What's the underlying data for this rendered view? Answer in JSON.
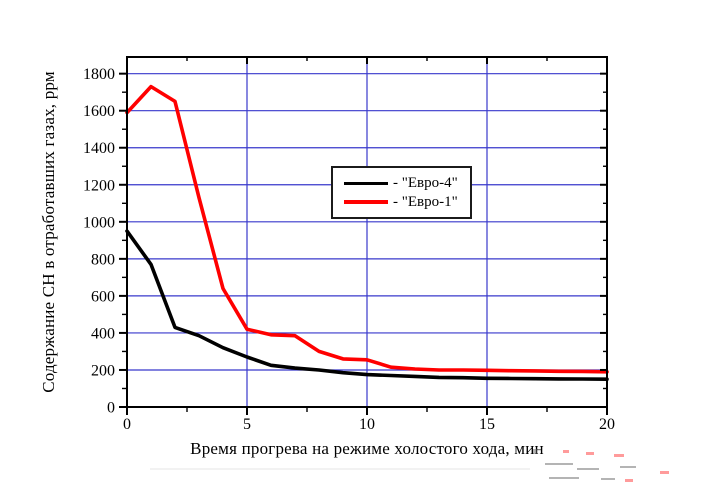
{
  "chart_data": {
    "type": "line",
    "title": "",
    "xlabel": "Время прогрева на режиме холостого хода, мин",
    "ylabel": "Содержание СН в отработавших газах, ррм",
    "xlim": [
      0,
      20
    ],
    "ylim": [
      0,
      1890
    ],
    "x": [
      0,
      1,
      2,
      3,
      4,
      5,
      6,
      7,
      8,
      9,
      10,
      11,
      12,
      13,
      14,
      15,
      16,
      17,
      18,
      19,
      20
    ],
    "series": [
      {
        "name": "Евро-4",
        "color": "#000000",
        "values": [
          950,
          770,
          430,
          385,
          320,
          270,
          225,
          210,
          200,
          185,
          175,
          170,
          165,
          160,
          158,
          155,
          154,
          153,
          152,
          151,
          150
        ]
      },
      {
        "name": "Евро-1",
        "color": "#ff0000",
        "values": [
          1590,
          1730,
          1650,
          1130,
          640,
          420,
          390,
          385,
          300,
          260,
          255,
          215,
          205,
          200,
          200,
          198,
          196,
          195,
          193,
          192,
          190
        ]
      }
    ],
    "x_major_ticks": [
      0,
      5,
      10,
      15,
      20
    ],
    "x_minor_ticks": [
      2.5,
      7.5,
      12.5,
      17.5
    ],
    "y_major_ticks": [
      0,
      200,
      400,
      600,
      800,
      1000,
      1200,
      1400,
      1600,
      1800
    ],
    "y_minor_ticks": [
      100,
      300,
      500,
      700,
      900,
      1100,
      1300,
      1500,
      1700
    ],
    "grid": {
      "x_values": [
        5,
        10,
        15
      ],
      "y_values": [
        200,
        400,
        600,
        800,
        1000,
        1200,
        1400,
        1600,
        1800
      ],
      "color": "#3838cc"
    },
    "legend_position": "inside-upper-middle"
  },
  "legend": {
    "entries": [
      {
        "label": "- \"Евро-4\"",
        "color": "#000000"
      },
      {
        "label": "- \"Евро-1\"",
        "color": "#ff0000"
      }
    ]
  },
  "axes": {
    "x_label": "Время прогрева на режиме холостого хода, мин",
    "y_label": "Содержание СН в отработавших газах, ррм"
  }
}
